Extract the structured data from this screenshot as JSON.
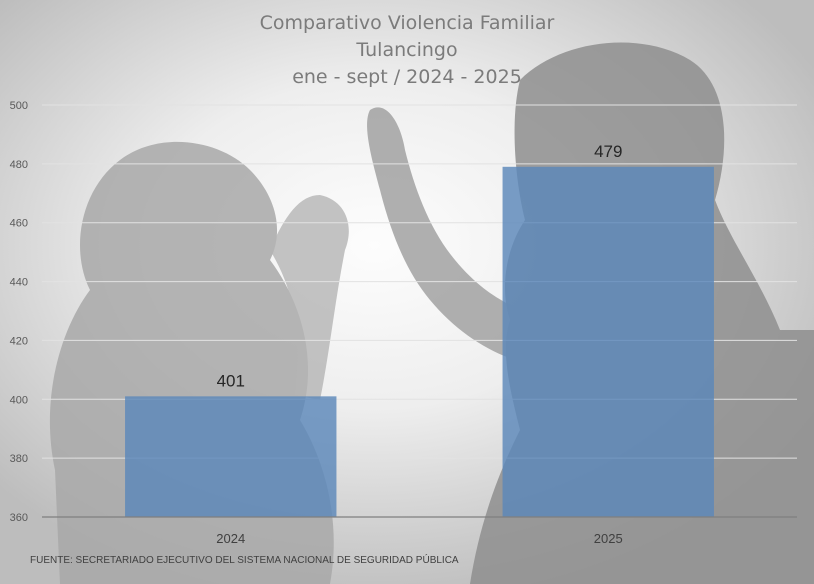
{
  "chart_data": {
    "type": "bar",
    "title_lines": [
      "Comparativo Violencia Familiar",
      "Tulancingo",
      "ene - sept / 2024 - 2025"
    ],
    "categories": [
      "2024",
      "2025"
    ],
    "values": [
      401,
      479
    ],
    "data_labels": [
      "401",
      "479"
    ],
    "ylim": [
      360,
      500
    ],
    "yticks": [
      "360",
      "380",
      "400",
      "420",
      "440",
      "460",
      "480",
      "500"
    ],
    "ytick_values": [
      360,
      380,
      400,
      420,
      440,
      460,
      480,
      500
    ],
    "grid": true,
    "legend": "none",
    "bar_color": "#5b87b9",
    "source": "FUENTE: SECRETARIADO EJECUTIVO DEL SISTEMA NACIONAL DE SEGURIDAD PÚBLICA"
  }
}
